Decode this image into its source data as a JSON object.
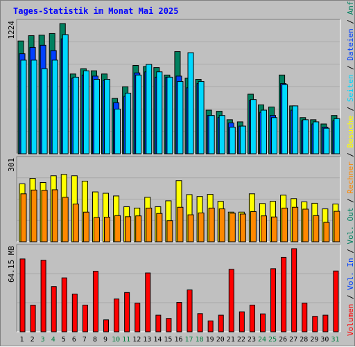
{
  "title": "Tages-Statistik im Monat Mai 2025",
  "colors": {
    "background": "#c0c0c0",
    "title": "#0000ff",
    "anfragen": "#00805f",
    "dateien": "#0040ff",
    "seiten": "#00d8ff",
    "besuche": "#ffff00",
    "rechner": "#ff8800",
    "volumen": "#ff0000",
    "weekend_day": "#008040",
    "weekday": "#000000"
  },
  "chart_data": [
    {
      "type": "bar",
      "panel": "hits",
      "ymax_label": "1224",
      "ylim": [
        0,
        1224
      ],
      "categories": [
        "1",
        "2",
        "3",
        "4",
        "5",
        "6",
        "7",
        "8",
        "9",
        "10",
        "11",
        "12",
        "13",
        "14",
        "15",
        "16",
        "17",
        "18",
        "19",
        "20",
        "21",
        "22",
        "23",
        "24",
        "25",
        "26",
        "27",
        "28",
        "29",
        "30",
        "31"
      ],
      "weekend_days": [
        "3",
        "4",
        "10",
        "11",
        "17",
        "18",
        "24",
        "25",
        "31"
      ],
      "series": [
        {
          "name": "Anfragen",
          "values": [
            1060,
            1110,
            1115,
            1130,
            1224,
            750,
            800,
            780,
            750,
            520,
            630,
            830,
            820,
            810,
            740,
            960,
            710,
            700,
            410,
            400,
            320,
            300,
            560,
            460,
            440,
            740,
            450,
            340,
            320,
            280,
            360
          ]
        },
        {
          "name": "Dateien",
          "values": [
            940,
            1000,
            1020,
            970,
            1080,
            710,
            740,
            730,
            690,
            480,
            540,
            760,
            770,
            720,
            720,
            730,
            620,
            660,
            360,
            340,
            290,
            260,
            500,
            390,
            360,
            660,
            410,
            310,
            280,
            250,
            310
          ]
        },
        {
          "name": "Seiten",
          "values": [
            880,
            880,
            800,
            880,
            1120,
            720,
            780,
            700,
            700,
            420,
            570,
            740,
            840,
            770,
            720,
            680,
            950,
            680,
            360,
            360,
            250,
            260,
            510,
            410,
            340,
            650,
            450,
            320,
            300,
            240,
            330
          ]
        }
      ]
    },
    {
      "type": "bar",
      "panel": "visits",
      "ymax_label": "301",
      "ylim": [
        0,
        301
      ],
      "categories": [
        "1",
        "2",
        "3",
        "4",
        "5",
        "6",
        "7",
        "8",
        "9",
        "10",
        "11",
        "12",
        "13",
        "14",
        "15",
        "16",
        "17",
        "18",
        "19",
        "20",
        "21",
        "22",
        "23",
        "24",
        "25",
        "26",
        "27",
        "28",
        "29",
        "30",
        "31"
      ],
      "series": [
        {
          "name": "Besuche",
          "values": [
            215,
            235,
            220,
            245,
            250,
            245,
            225,
            185,
            180,
            170,
            130,
            125,
            165,
            130,
            152,
            227,
            175,
            168,
            176,
            150,
            110,
            110,
            178,
            142,
            150,
            173,
            160,
            148,
            143,
            122,
            140
          ]
        },
        {
          "name": "Rechner",
          "values": [
            178,
            192,
            191,
            193,
            165,
            140,
            110,
            90,
            91,
            97,
            93,
            96,
            125,
            105,
            78,
            128,
            100,
            107,
            125,
            122,
            106,
            103,
            112,
            96,
            92,
            125,
            128,
            121,
            97,
            72,
            113
          ]
        }
      ]
    },
    {
      "type": "bar",
      "panel": "volume",
      "ymax_label": "64.15 MB",
      "ylim": [
        0,
        64.15
      ],
      "categories": [
        "1",
        "2",
        "3",
        "4",
        "5",
        "6",
        "7",
        "8",
        "9",
        "10",
        "11",
        "12",
        "13",
        "14",
        "15",
        "16",
        "17",
        "18",
        "19",
        "20",
        "21",
        "22",
        "23",
        "24",
        "25",
        "26",
        "27",
        "28",
        "29",
        "30",
        "31"
      ],
      "series": [
        {
          "name": "Volumen",
          "values": [
            56.2,
            20.5,
            55.2,
            34.9,
            41.6,
            29.1,
            20.6,
            46.7,
            9.2,
            25.3,
            30.3,
            22.1,
            45.4,
            12.8,
            10.3,
            22.7,
            32.3,
            14.0,
            8.4,
            12.8,
            48.2,
            15.4,
            20.6,
            13.8,
            48.7,
            57.5,
            64.15,
            22.1,
            11.9,
            12.8,
            46.9
          ]
        }
      ]
    }
  ],
  "legend": {
    "hits": [
      {
        "label": "Anfragen",
        "color": "#00805f"
      },
      {
        "label": "Dateien",
        "color": "#0040ff"
      },
      {
        "label": "Seiten",
        "color": "#00d8ff"
      },
      {
        "label": "Besuche",
        "color": "#ffff00"
      },
      {
        "label": "Rechner",
        "color": "#ff8800"
      },
      {
        "label": "Vol. Out",
        "color": "#00805f"
      },
      {
        "label": "Vol. In",
        "color": "#0040ff"
      },
      {
        "label": "Volumen",
        "color": "#ff0000"
      }
    ],
    "separator": "/"
  }
}
